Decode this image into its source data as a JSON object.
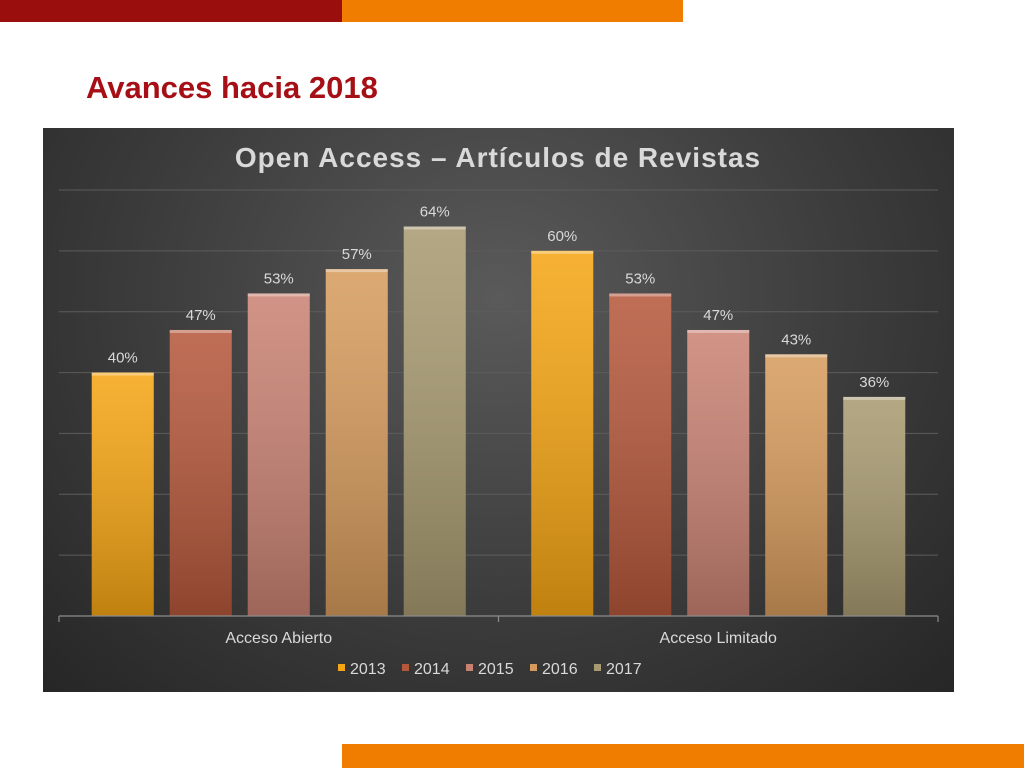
{
  "slide": {
    "title": "Avances hacia 2018",
    "colors": {
      "top_left_bar": "#9b0e0e",
      "accent_orange": "#f07d00",
      "title": "#a50f15"
    }
  },
  "chart_data": {
    "type": "bar",
    "title": "Open Access – Artículos de Revistas",
    "categories": [
      "Acceso Abierto",
      "Acceso Limitado"
    ],
    "series": [
      {
        "name": "2013",
        "values": [
          40,
          60
        ],
        "labels": [
          "40%",
          "60%"
        ],
        "color": "#f5a513"
      },
      {
        "name": "2014",
        "values": [
          47,
          53
        ],
        "labels": [
          "47%",
          "53%"
        ],
        "color": "#b5573a"
      },
      {
        "name": "2015",
        "values": [
          53,
          47
        ],
        "labels": [
          "53%",
          "47%"
        ],
        "color": "#c98272"
      },
      {
        "name": "2016",
        "values": [
          57,
          43
        ],
        "labels": [
          "57%",
          "43%"
        ],
        "color": "#d69b5c"
      },
      {
        "name": "2017",
        "values": [
          64,
          36
        ],
        "labels": [
          "64%",
          "36%"
        ],
        "color": "#a89a70"
      }
    ],
    "unit": "%",
    "ylim": [
      0,
      70
    ],
    "y_tick_step": 10,
    "grid": true,
    "y_axis_labels_shown": false,
    "legend_position": "bottom",
    "background": "#3a3a3a"
  }
}
